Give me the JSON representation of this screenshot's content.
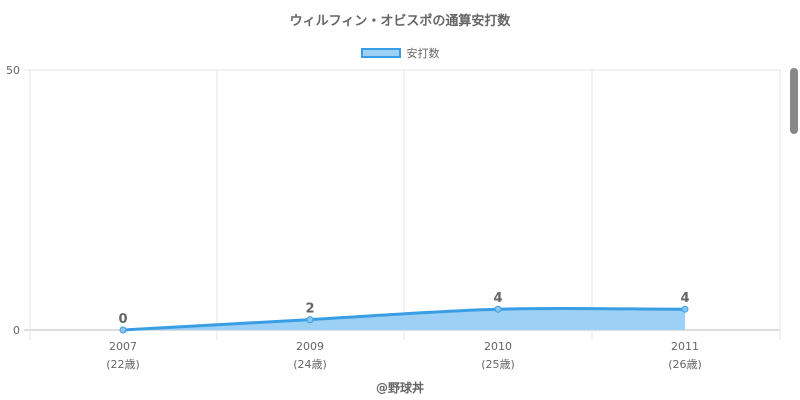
{
  "chart_data": {
    "type": "area",
    "title": "ウィルフィン・オビスポの通算安打数",
    "categories": [
      "2007",
      "2009",
      "2010",
      "2011"
    ],
    "age_labels": [
      "(22歳)",
      "(24歳)",
      "(25歳)",
      "(26歳)"
    ],
    "series": [
      {
        "name": "安打数",
        "values": [
          0,
          2,
          4,
          4
        ]
      }
    ],
    "y_ticks": [
      "0",
      "50"
    ],
    "ylim": [
      0,
      50
    ],
    "grid": true,
    "legend_position": "top-center",
    "fill_color": "#9dd0f5",
    "line_color": "#3a9ee4",
    "data_labels": true
  },
  "credit": "@野球丼"
}
